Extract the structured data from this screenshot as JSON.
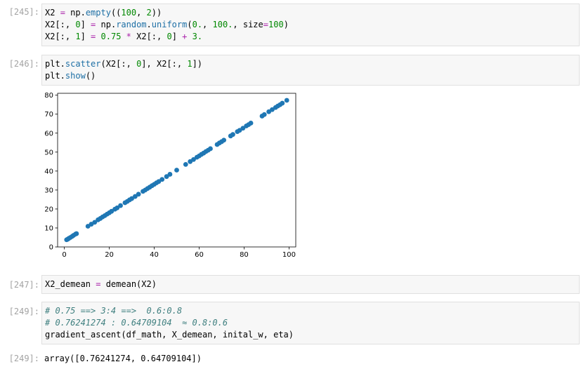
{
  "cells": [
    {
      "prompt": "[245]:",
      "lines": [
        [
          [
            "var",
            "X2 "
          ],
          [
            "op",
            "="
          ],
          [
            "var",
            " np."
          ],
          [
            "fn",
            "empty"
          ],
          [
            "var",
            "(("
          ],
          [
            "num",
            "100"
          ],
          [
            "var",
            ", "
          ],
          [
            "num",
            "2"
          ],
          [
            "var",
            "))"
          ]
        ],
        [
          [
            "var",
            "X2[:, "
          ],
          [
            "num",
            "0"
          ],
          [
            "var",
            "] "
          ],
          [
            "op",
            "="
          ],
          [
            "var",
            " np."
          ],
          [
            "fn",
            "random"
          ],
          [
            "var",
            "."
          ],
          [
            "fn",
            "uniform"
          ],
          [
            "var",
            "("
          ],
          [
            "num",
            "0."
          ],
          [
            "var",
            ", "
          ],
          [
            "num",
            "100."
          ],
          [
            "var",
            ", size"
          ],
          [
            "op",
            "="
          ],
          [
            "num",
            "100"
          ],
          [
            "var",
            ")"
          ]
        ],
        [
          [
            "var",
            "X2[:, "
          ],
          [
            "num",
            "1"
          ],
          [
            "var",
            "] "
          ],
          [
            "op",
            "="
          ],
          [
            "var",
            " "
          ],
          [
            "num",
            "0.75"
          ],
          [
            "var",
            " "
          ],
          [
            "op",
            "*"
          ],
          [
            "var",
            " X2[:, "
          ],
          [
            "num",
            "0"
          ],
          [
            "var",
            "] "
          ],
          [
            "op",
            "+"
          ],
          [
            "var",
            " "
          ],
          [
            "num",
            "3."
          ]
        ]
      ]
    },
    {
      "prompt": "[246]:",
      "lines": [
        [
          [
            "var",
            "plt."
          ],
          [
            "fn",
            "scatter"
          ],
          [
            "var",
            "(X2[:, "
          ],
          [
            "num",
            "0"
          ],
          [
            "var",
            "], X2[:, "
          ],
          [
            "num",
            "1"
          ],
          [
            "var",
            "])"
          ]
        ],
        [
          [
            "var",
            "plt."
          ],
          [
            "fn",
            "show"
          ],
          [
            "var",
            "()"
          ]
        ]
      ]
    },
    {
      "prompt": "[247]:",
      "lines": [
        [
          [
            "var",
            "X2_demean "
          ],
          [
            "op",
            "="
          ],
          [
            "var",
            " demean(X2)"
          ]
        ]
      ]
    },
    {
      "prompt": "[249]:",
      "lines": [
        [
          [
            "cm",
            "# 0.75 ==> 3:4 ==>  0.6:0.8"
          ]
        ],
        [
          [
            "cm",
            "# 0.76241274 : 0.64709104  ≈ 0.8:0.6"
          ]
        ],
        [
          [
            "var",
            "gradient_ascent(df_math, X_demean, inital_w, eta)"
          ]
        ]
      ]
    }
  ],
  "output": {
    "prompt": "[249]:",
    "text": "array([0.76241274, 0.64709104])"
  },
  "chart_data": {
    "type": "scatter",
    "color": "#1f77b4",
    "xlim": [
      -3,
      103
    ],
    "ylim": [
      0,
      81
    ],
    "xticks": [
      0,
      20,
      40,
      60,
      80,
      100
    ],
    "yticks": [
      0,
      10,
      20,
      30,
      40,
      50,
      60,
      70,
      80
    ],
    "points": [
      [
        1,
        3.8
      ],
      [
        1.5,
        4.1
      ],
      [
        2,
        4.5
      ],
      [
        2.7,
        5
      ],
      [
        3.5,
        5.6
      ],
      [
        4.1,
        6.1
      ],
      [
        5,
        6.8
      ],
      [
        5.4,
        7
      ],
      [
        10.5,
        10.9
      ],
      [
        12,
        12
      ],
      [
        13.5,
        13
      ],
      [
        15,
        14.3
      ],
      [
        16,
        15
      ],
      [
        17,
        15.8
      ],
      [
        18,
        16.5
      ],
      [
        19,
        17.3
      ],
      [
        20,
        18
      ],
      [
        21,
        18.8
      ],
      [
        22.5,
        19.9
      ],
      [
        23.5,
        20.6
      ],
      [
        25,
        21.8
      ],
      [
        27,
        23.3
      ],
      [
        28,
        24
      ],
      [
        29,
        24.8
      ],
      [
        30,
        25.5
      ],
      [
        31.5,
        26.6
      ],
      [
        33,
        27.8
      ],
      [
        35,
        29.3
      ],
      [
        36,
        30
      ],
      [
        37,
        30.8
      ],
      [
        38,
        31.5
      ],
      [
        39,
        32.3
      ],
      [
        40,
        33
      ],
      [
        41,
        33.8
      ],
      [
        42,
        34.5
      ],
      [
        43.5,
        35.6
      ],
      [
        45.5,
        37.1
      ],
      [
        47,
        38.3
      ],
      [
        50,
        40.5
      ],
      [
        54,
        43.5
      ],
      [
        56,
        45
      ],
      [
        57.5,
        46.1
      ],
      [
        59,
        47.3
      ],
      [
        60,
        48
      ],
      [
        61,
        48.8
      ],
      [
        62,
        49.5
      ],
      [
        63,
        50.3
      ],
      [
        64,
        51
      ],
      [
        65,
        51.8
      ],
      [
        68,
        54
      ],
      [
        69,
        54.8
      ],
      [
        70,
        55.5
      ],
      [
        71,
        56.3
      ],
      [
        74,
        58.5
      ],
      [
        75,
        59.3
      ],
      [
        77,
        60.8
      ],
      [
        78,
        61.5
      ],
      [
        79.5,
        62.6
      ],
      [
        81,
        63.8
      ],
      [
        82,
        64.5
      ],
      [
        83,
        65.3
      ],
      [
        88,
        69
      ],
      [
        89,
        69.8
      ],
      [
        91,
        71.3
      ],
      [
        92.5,
        72.4
      ],
      [
        94,
        73.5
      ],
      [
        95,
        74.3
      ],
      [
        96,
        75
      ],
      [
        97,
        75.8
      ],
      [
        99,
        77.3
      ]
    ]
  }
}
